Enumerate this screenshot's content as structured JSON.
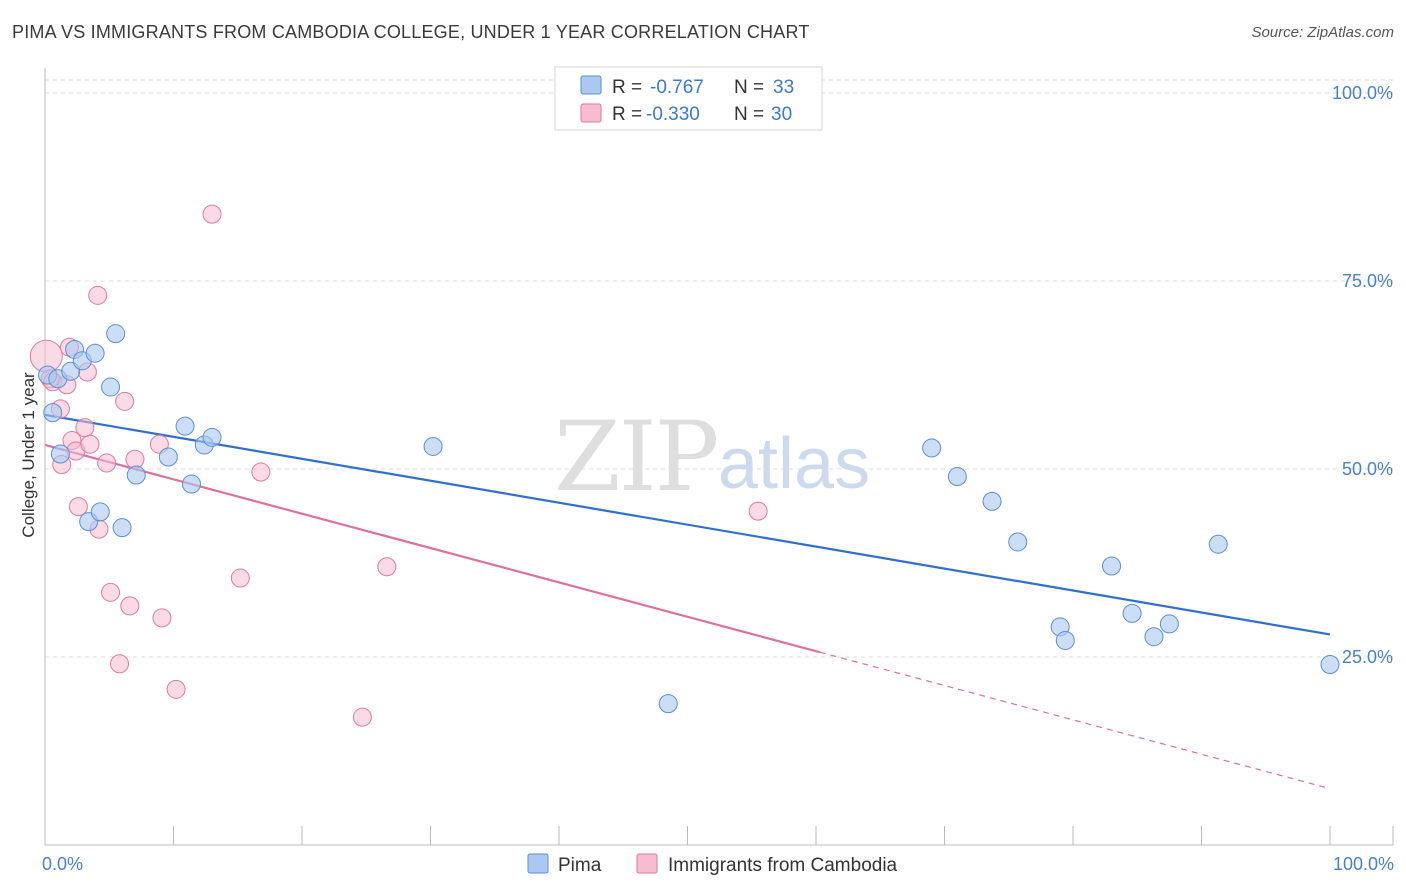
{
  "title": "PIMA VS IMMIGRANTS FROM CAMBODIA COLLEGE, UNDER 1 YEAR CORRELATION CHART",
  "source": "Source: ZipAtlas.com",
  "watermark": {
    "zip": "ZIP",
    "atlas": "atlas"
  },
  "legend_box": {
    "rows": [
      {
        "r_label": "R = ",
        "r_value": "-0.767",
        "n_label": "N = ",
        "n_value": "33"
      },
      {
        "r_label": "R = ",
        "r_value": "-0.330",
        "n_label": "N = ",
        "n_value": "30"
      }
    ]
  },
  "bottom_legend": {
    "series1": "Pima",
    "series2": "Immigrants from Cambodia"
  },
  "colors": {
    "pima_fill": "#aac8f0",
    "pima_stroke": "#5a8fd8",
    "pima_line": "#2f6fd4",
    "cambodia_fill": "#f6bcd0",
    "cambodia_stroke": "#e07aa0",
    "cambodia_line": "#e0709a",
    "grid": "#dddddd",
    "axis_text": "#4a7fd0"
  },
  "chart_data": {
    "type": "scatter",
    "title": "PIMA VS IMMIGRANTS FROM CAMBODIA COLLEGE, UNDER 1 YEAR CORRELATION CHART",
    "xlabel": "",
    "ylabel": "College, Under 1 year",
    "xlim": [
      0,
      100
    ],
    "ylim": [
      0,
      102
    ],
    "x_tick_labels": [
      "0.0%",
      "100.0%"
    ],
    "y_ticks": [
      25,
      50,
      75,
      100
    ],
    "y_tick_labels": [
      "25.0%",
      "50.0%",
      "75.0%",
      "100.0%"
    ],
    "legend_position": "top-center",
    "series": [
      {
        "name": "Pima",
        "r": -0.767,
        "n": 33,
        "trend": {
          "x0": 0,
          "y0": 57.2,
          "x1": 100,
          "y1": 28.0,
          "dash_from": null
        },
        "points": [
          [
            0.2,
            62.5
          ],
          [
            0.6,
            57.5
          ],
          [
            1.0,
            62.0
          ],
          [
            1.2,
            52.0
          ],
          [
            2.0,
            63.0
          ],
          [
            2.3,
            65.9
          ],
          [
            2.9,
            64.4
          ],
          [
            3.9,
            65.4
          ],
          [
            3.4,
            43.0
          ],
          [
            4.3,
            44.3
          ],
          [
            5.1,
            60.9
          ],
          [
            5.5,
            68.0
          ],
          [
            6.0,
            42.2
          ],
          [
            7.1,
            49.2
          ],
          [
            9.6,
            51.6
          ],
          [
            10.9,
            55.7
          ],
          [
            11.4,
            48.0
          ],
          [
            12.4,
            53.2
          ],
          [
            13.0,
            54.2
          ],
          [
            30.2,
            53.0
          ],
          [
            48.5,
            18.8
          ],
          [
            69.0,
            52.8
          ],
          [
            71.0,
            49.0
          ],
          [
            73.7,
            45.7
          ],
          [
            75.7,
            40.3
          ],
          [
            79.0,
            29.0
          ],
          [
            79.4,
            27.2
          ],
          [
            83.0,
            37.1
          ],
          [
            84.6,
            30.8
          ],
          [
            86.3,
            27.7
          ],
          [
            87.5,
            29.4
          ],
          [
            91.3,
            40.0
          ],
          [
            100.0,
            24.0
          ]
        ]
      },
      {
        "name": "Immigrants from Cambodia",
        "r": -0.33,
        "n": 30,
        "trend": {
          "x0": 0,
          "y0": 53.2,
          "x1": 100,
          "y1": 7.5,
          "dash_from": 60.3
        },
        "points": [
          [
            0.1,
            65.0
          ],
          [
            0.4,
            62.0
          ],
          [
            0.6,
            61.6
          ],
          [
            1.2,
            58.0
          ],
          [
            1.3,
            50.6
          ],
          [
            1.7,
            61.2
          ],
          [
            1.9,
            66.2
          ],
          [
            2.1,
            53.8
          ],
          [
            2.4,
            52.4
          ],
          [
            2.6,
            45.0
          ],
          [
            3.1,
            55.5
          ],
          [
            3.3,
            62.9
          ],
          [
            3.5,
            53.3
          ],
          [
            4.1,
            73.1
          ],
          [
            4.2,
            42.0
          ],
          [
            4.8,
            50.8
          ],
          [
            5.1,
            33.6
          ],
          [
            5.8,
            24.1
          ],
          [
            6.2,
            59.0
          ],
          [
            6.6,
            31.8
          ],
          [
            7.0,
            51.3
          ],
          [
            8.9,
            53.3
          ],
          [
            9.1,
            30.2
          ],
          [
            10.2,
            20.7
          ],
          [
            13.0,
            83.9
          ],
          [
            15.2,
            35.5
          ],
          [
            16.8,
            49.6
          ],
          [
            24.7,
            17.0
          ],
          [
            26.6,
            37.0
          ],
          [
            55.5,
            44.4
          ]
        ]
      }
    ]
  }
}
